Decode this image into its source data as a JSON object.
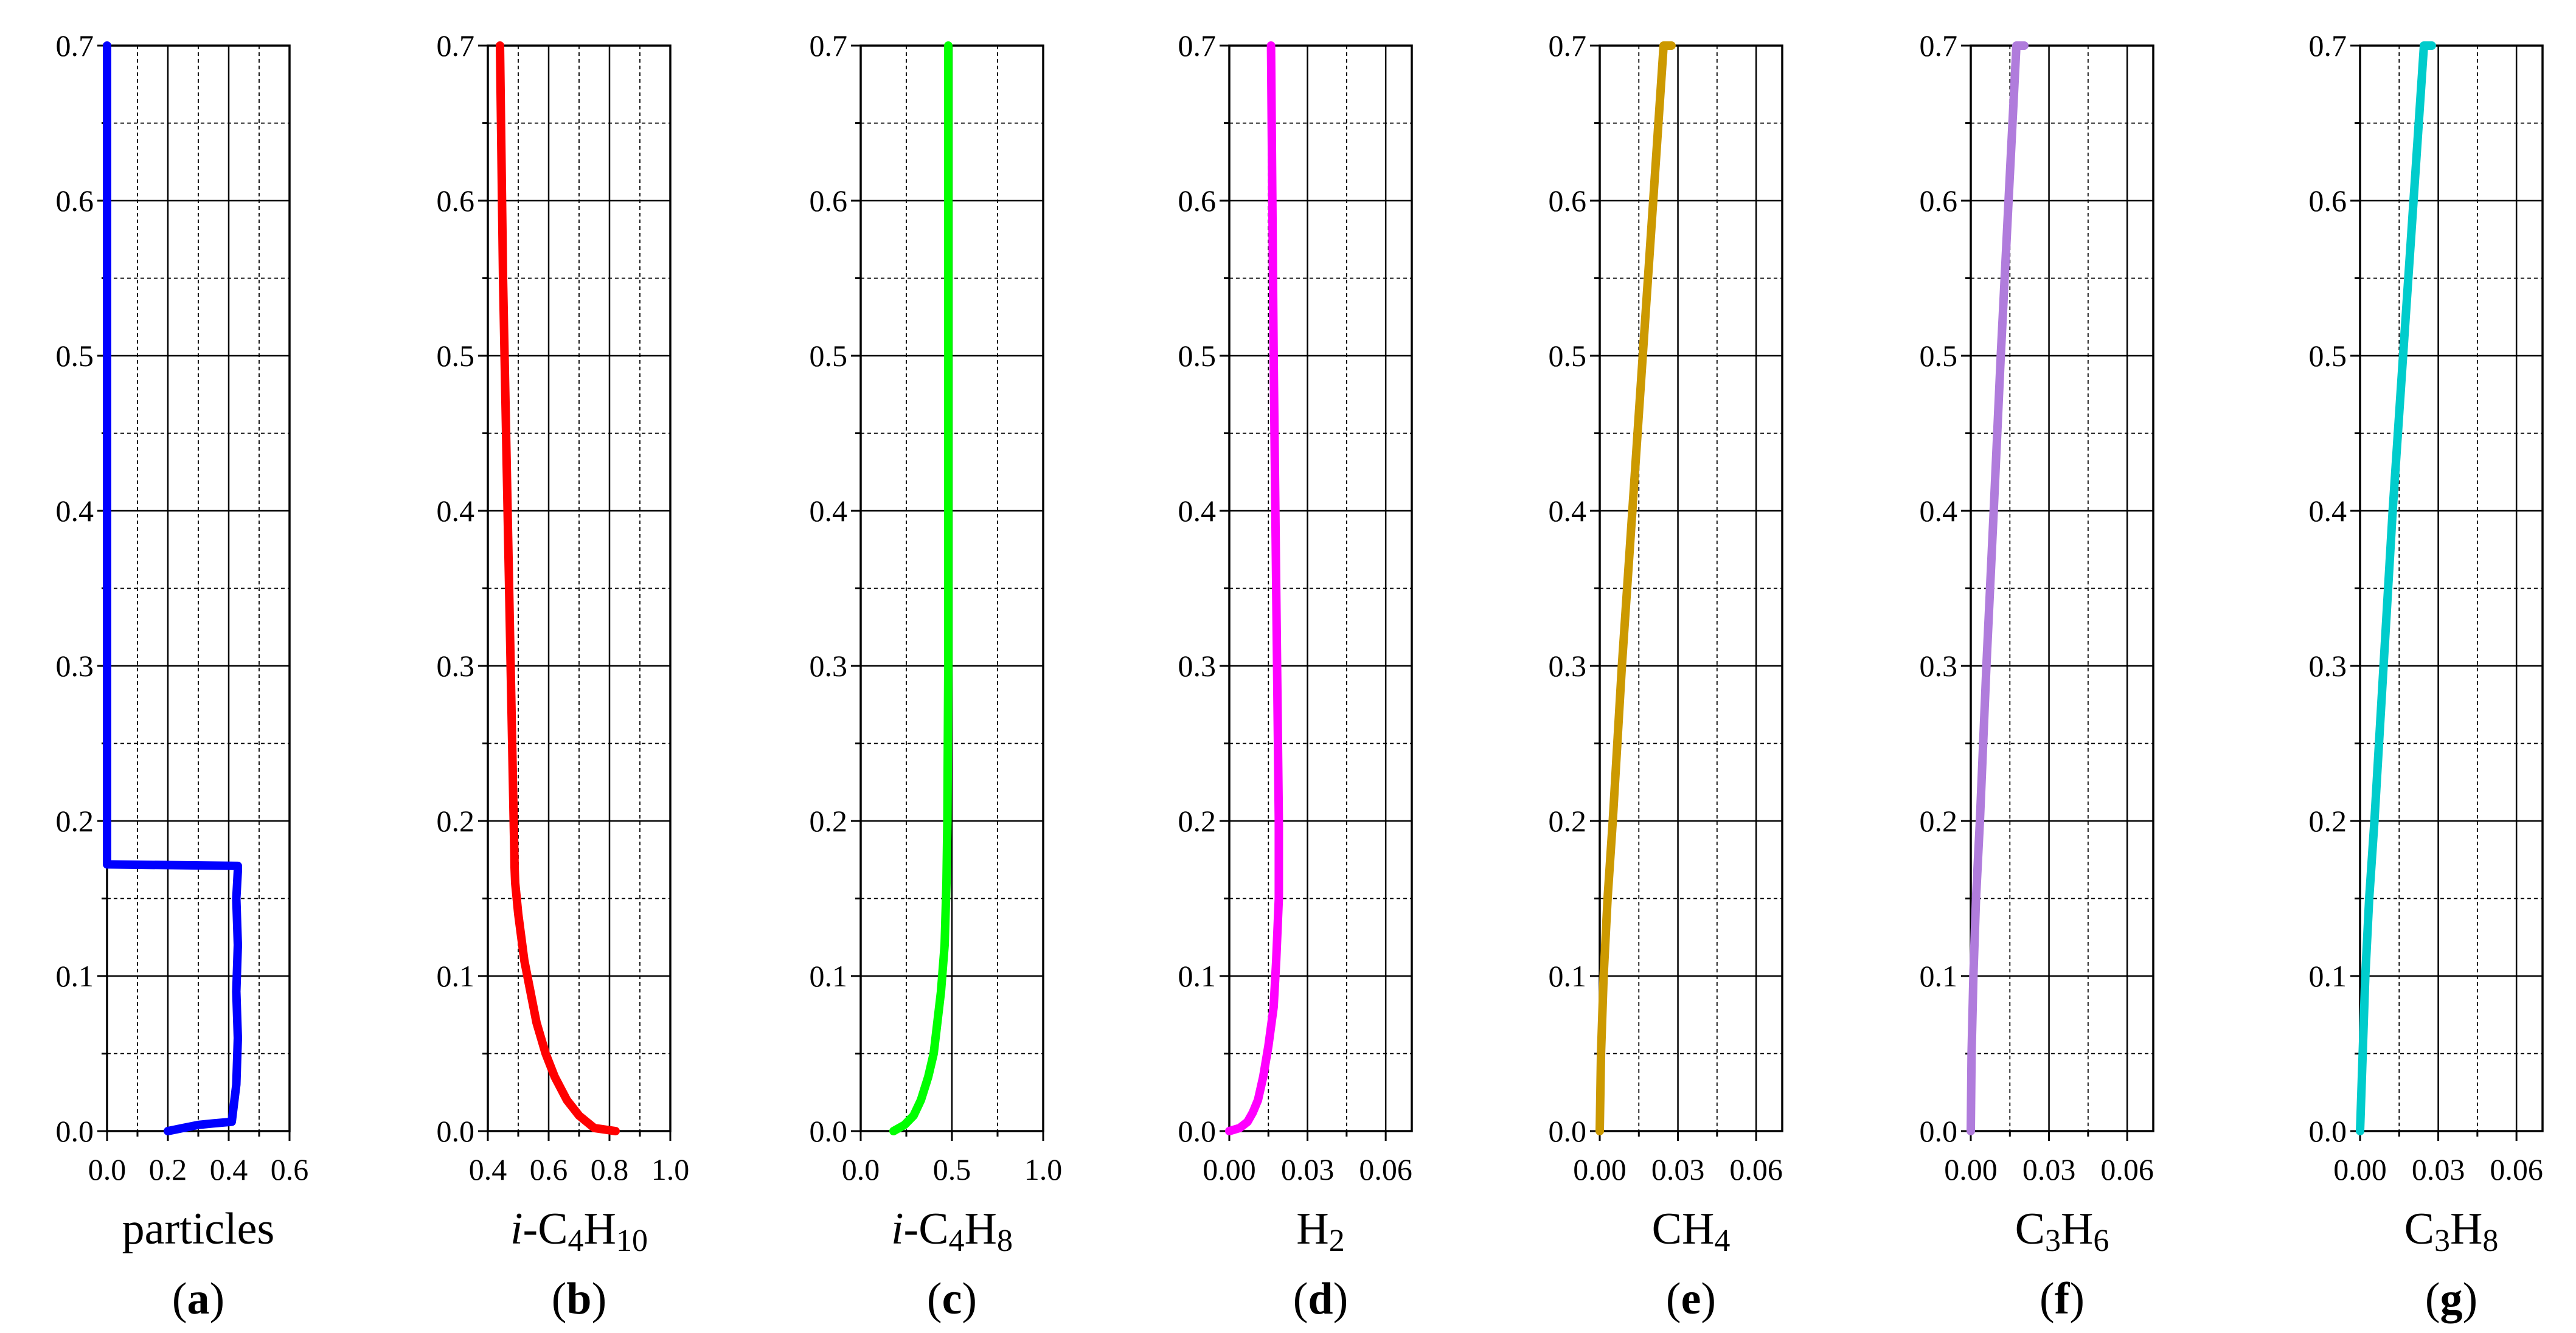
{
  "chart_data": [
    {
      "type": "line",
      "panel": "a",
      "xlabel": "particles",
      "xlabel_rich": [
        {
          "t": "particles"
        }
      ],
      "xlim": [
        0,
        0.6
      ],
      "xticks": [
        0.0,
        0.2,
        0.4,
        0.6
      ],
      "xtick_labels": [
        "0.0",
        "0.2",
        "0.4",
        "0.6"
      ],
      "ylim": [
        0,
        0.7
      ],
      "yticks": [
        0.0,
        0.1,
        0.2,
        0.3,
        0.4,
        0.5,
        0.6,
        0.7
      ],
      "ytick_labels": [
        "0.0",
        "0.1",
        "0.2",
        "0.3",
        "0.4",
        "0.5",
        "0.6",
        "0.7"
      ],
      "color": "#0000ff",
      "series": [
        {
          "name": "particles",
          "x": [
            0.2,
            0.25,
            0.3,
            0.35,
            0.41,
            0.425,
            0.43,
            0.425,
            0.43,
            0.425,
            0.43,
            0.43,
            0.43,
            0.0,
            0.0,
            0.0
          ],
          "y": [
            0.0,
            0.002,
            0.004,
            0.005,
            0.006,
            0.03,
            0.06,
            0.09,
            0.12,
            0.15,
            0.168,
            0.17,
            0.171,
            0.172,
            0.174,
            0.7
          ]
        }
      ]
    },
    {
      "type": "line",
      "panel": "b",
      "xlabel": "i-C4H10",
      "xlabel_rich": [
        {
          "t": "i",
          "i": true
        },
        {
          "t": "-C"
        },
        {
          "t": "4",
          "s": true
        },
        {
          "t": "H"
        },
        {
          "t": "10",
          "s": true
        }
      ],
      "xlim": [
        0.4,
        1.0
      ],
      "xticks": [
        0.4,
        0.6,
        0.8,
        1.0
      ],
      "xtick_labels": [
        "0.4",
        "0.6",
        "0.8",
        "1.0"
      ],
      "ylim": [
        0,
        0.7
      ],
      "yticks": [
        0.0,
        0.1,
        0.2,
        0.3,
        0.4,
        0.5,
        0.6,
        0.7
      ],
      "ytick_labels": [
        "0.0",
        "0.1",
        "0.2",
        "0.3",
        "0.4",
        "0.5",
        "0.6",
        "0.7"
      ],
      "color": "#ff0000",
      "series": [
        {
          "name": "i-C4H10",
          "x": [
            0.82,
            0.75,
            0.7,
            0.66,
            0.62,
            0.59,
            0.56,
            0.54,
            0.52,
            0.5,
            0.49,
            0.488,
            0.48,
            0.47,
            0.46,
            0.45,
            0.44
          ],
          "y": [
            0.0,
            0.002,
            0.01,
            0.02,
            0.035,
            0.05,
            0.07,
            0.09,
            0.11,
            0.14,
            0.16,
            0.17,
            0.25,
            0.35,
            0.45,
            0.55,
            0.7
          ]
        }
      ]
    },
    {
      "type": "line",
      "panel": "c",
      "xlabel": "i-C4H8",
      "xlabel_rich": [
        {
          "t": "i",
          "i": true
        },
        {
          "t": "-C"
        },
        {
          "t": "4",
          "s": true
        },
        {
          "t": "H"
        },
        {
          "t": "8",
          "s": true
        }
      ],
      "xlim": [
        0.0,
        1.0
      ],
      "xticks": [
        0.0,
        0.5,
        1.0
      ],
      "xtick_labels": [
        "0.0",
        "0.5",
        "1.0"
      ],
      "ylim": [
        0,
        0.7
      ],
      "yticks": [
        0.0,
        0.1,
        0.2,
        0.3,
        0.4,
        0.5,
        0.6,
        0.7
      ],
      "ytick_labels": [
        "0.0",
        "0.1",
        "0.2",
        "0.3",
        "0.4",
        "0.5",
        "0.6",
        "0.7"
      ],
      "color": "#00ff00",
      "series": [
        {
          "name": "i-C4H8",
          "x": [
            0.18,
            0.24,
            0.29,
            0.33,
            0.37,
            0.4,
            0.42,
            0.44,
            0.46,
            0.47,
            0.475,
            0.48,
            0.48,
            0.48
          ],
          "y": [
            0.0,
            0.004,
            0.01,
            0.02,
            0.035,
            0.05,
            0.07,
            0.09,
            0.12,
            0.16,
            0.2,
            0.3,
            0.5,
            0.7
          ]
        }
      ]
    },
    {
      "type": "line",
      "panel": "d",
      "xlabel": "H2",
      "xlabel_rich": [
        {
          "t": "H"
        },
        {
          "t": "2",
          "s": true
        }
      ],
      "xlim": [
        0.0,
        0.07
      ],
      "xticks": [
        0.0,
        0.03,
        0.06
      ],
      "xtick_labels": [
        "0.00",
        "0.03",
        "0.06"
      ],
      "ylim": [
        0,
        0.7
      ],
      "yticks": [
        0.0,
        0.1,
        0.2,
        0.3,
        0.4,
        0.5,
        0.6,
        0.7
      ],
      "ytick_labels": [
        "0.0",
        "0.1",
        "0.2",
        "0.3",
        "0.4",
        "0.5",
        "0.6",
        "0.7"
      ],
      "color": "#ff00ff",
      "series": [
        {
          "name": "H2",
          "x": [
            0.0,
            0.004,
            0.007,
            0.009,
            0.011,
            0.013,
            0.015,
            0.017,
            0.018,
            0.019,
            0.019,
            0.018,
            0.017,
            0.016
          ],
          "y": [
            0.0,
            0.002,
            0.006,
            0.012,
            0.02,
            0.035,
            0.055,
            0.08,
            0.11,
            0.15,
            0.2,
            0.35,
            0.5,
            0.7
          ]
        }
      ]
    },
    {
      "type": "line",
      "panel": "e",
      "xlabel": "CH4",
      "xlabel_rich": [
        {
          "t": "CH"
        },
        {
          "t": "4",
          "s": true
        }
      ],
      "xlim": [
        0.0,
        0.07
      ],
      "xticks": [
        0.0,
        0.03,
        0.06
      ],
      "xtick_labels": [
        "0.00",
        "0.03",
        "0.06"
      ],
      "ylim": [
        0,
        0.7
      ],
      "yticks": [
        0.0,
        0.1,
        0.2,
        0.3,
        0.4,
        0.5,
        0.6,
        0.7
      ],
      "ytick_labels": [
        "0.0",
        "0.1",
        "0.2",
        "0.3",
        "0.4",
        "0.5",
        "0.6",
        "0.7"
      ],
      "color": "#cc9900",
      "series": [
        {
          "name": "CH4",
          "x": [
            0.0,
            0.0005,
            0.0015,
            0.003,
            0.005,
            0.0085,
            0.0125,
            0.0165,
            0.0205,
            0.0245,
            0.0275
          ],
          "y": [
            0.0,
            0.05,
            0.1,
            0.15,
            0.2,
            0.3,
            0.4,
            0.5,
            0.6,
            0.7,
            0.7
          ]
        }
      ]
    },
    {
      "type": "line",
      "panel": "f",
      "xlabel": "C3H6",
      "xlabel_rich": [
        {
          "t": "C"
        },
        {
          "t": "3",
          "s": true
        },
        {
          "t": "H"
        },
        {
          "t": "6",
          "s": true
        }
      ],
      "xlim": [
        0.0,
        0.07
      ],
      "xticks": [
        0.0,
        0.03,
        0.06
      ],
      "xtick_labels": [
        "0.00",
        "0.03",
        "0.06"
      ],
      "ylim": [
        0,
        0.7
      ],
      "yticks": [
        0.0,
        0.1,
        0.2,
        0.3,
        0.4,
        0.5,
        0.6,
        0.7
      ],
      "ytick_labels": [
        "0.0",
        "0.1",
        "0.2",
        "0.3",
        "0.4",
        "0.5",
        "0.6",
        "0.7"
      ],
      "color": "#b07cdc",
      "series": [
        {
          "name": "C3H6",
          "x": [
            0.0,
            0.0003,
            0.001,
            0.002,
            0.0035,
            0.006,
            0.0088,
            0.0115,
            0.0145,
            0.0175,
            0.0205
          ],
          "y": [
            0.0,
            0.05,
            0.1,
            0.15,
            0.2,
            0.3,
            0.4,
            0.5,
            0.6,
            0.7,
            0.7
          ]
        }
      ]
    },
    {
      "type": "line",
      "panel": "g",
      "xlabel": "C3H8",
      "xlabel_rich": [
        {
          "t": "C"
        },
        {
          "t": "3",
          "s": true
        },
        {
          "t": "H"
        },
        {
          "t": "8",
          "s": true
        }
      ],
      "xlim": [
        0.0,
        0.07
      ],
      "xticks": [
        0.0,
        0.03,
        0.06
      ],
      "xtick_labels": [
        "0.00",
        "0.03",
        "0.06"
      ],
      "ylim": [
        0,
        0.7
      ],
      "yticks": [
        0.0,
        0.1,
        0.2,
        0.3,
        0.4,
        0.5,
        0.6,
        0.7
      ],
      "ytick_labels": [
        "0.0",
        "0.1",
        "0.2",
        "0.3",
        "0.4",
        "0.5",
        "0.6",
        "0.7"
      ],
      "color": "#00cccc",
      "series": [
        {
          "name": "C3H8",
          "x": [
            0.0,
            0.001,
            0.002,
            0.0035,
            0.0055,
            0.009,
            0.0125,
            0.0165,
            0.0205,
            0.0245,
            0.0275
          ],
          "y": [
            0.0,
            0.05,
            0.1,
            0.15,
            0.2,
            0.3,
            0.4,
            0.5,
            0.6,
            0.7,
            0.7
          ]
        }
      ]
    }
  ]
}
